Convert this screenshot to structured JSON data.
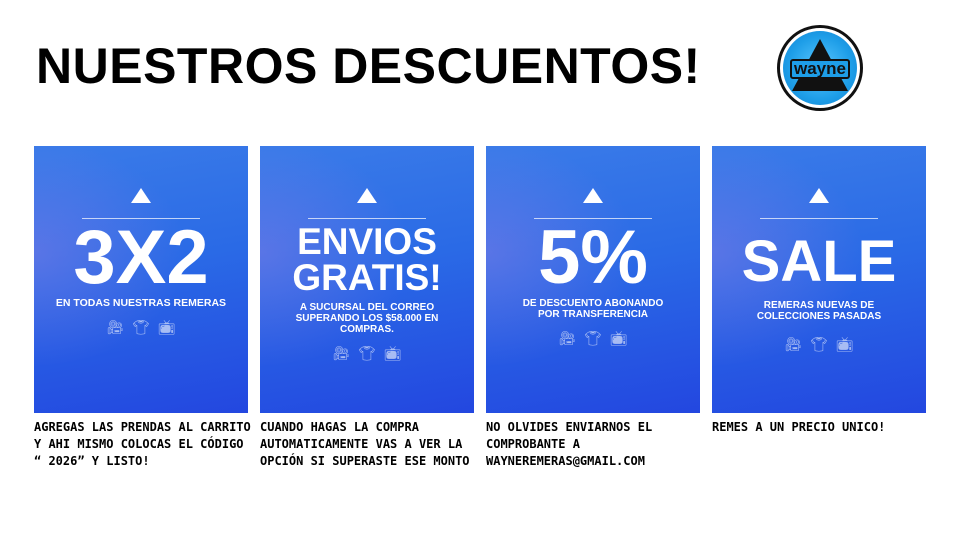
{
  "title": "NUESTROS DESCUENTOS!",
  "logo": {
    "text": "wayne"
  },
  "cards": [
    {
      "headline": "3X2",
      "subtitle": "EN TODAS NUESTRAS REMERAS",
      "description": "AGREGAS LAS PRENDAS AL CARRITO Y AHI MISMO COLOCAS EL CÓDIGO “ 2026” Y LISTO!"
    },
    {
      "headline": "ENVIOS GRATIS!",
      "subtitle": "A SUCURSAL DEL CORREO SUPERANDO LOS $58.000 EN COMPRAS.",
      "description": "CUANDO HAGAS LA COMPRA AUTOMATICAMENTE VAS A VER LA OPCIÓN SI SUPERASTE ESE MONTO"
    },
    {
      "headline": "5%",
      "subtitle": "DE DESCUENTO ABONANDO POR TRANSFERENCIA",
      "description": "NO OLVIDES ENVIARNOS EL COMPROBANTE A WAYNEREMERAS@GMAIL.COM"
    },
    {
      "headline": "SALE",
      "subtitle": "REMERAS NUEVAS DE COLECCIONES PASADAS",
      "description": "REMES A UN PRECIO UNICO!"
    }
  ],
  "icons": [
    "camera-icon",
    "tshirt-icon",
    "tv-icon"
  ],
  "colors": {
    "card_top": "#3a7be8",
    "card_bottom": "#2347e0",
    "logo_blue": "#1e9ee8"
  }
}
